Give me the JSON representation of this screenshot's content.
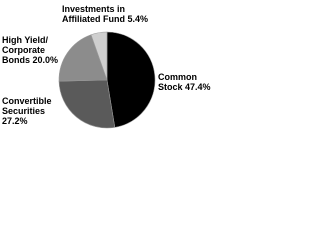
{
  "chart_data": {
    "type": "pie",
    "categories": [
      "Common Stock",
      "Convertible Securities",
      "High Yield/ Corporate Bonds",
      "Investments in Affiliated Fund"
    ],
    "values": [
      47.4,
      27.2,
      20.0,
      5.4
    ],
    "value_labels": [
      "47.4%",
      "27.2%",
      "20.0%",
      "5.4%"
    ],
    "colors": [
      "#000000",
      "#5a5a5a",
      "#8c8c8c",
      "#cfcfcf"
    ]
  }
}
